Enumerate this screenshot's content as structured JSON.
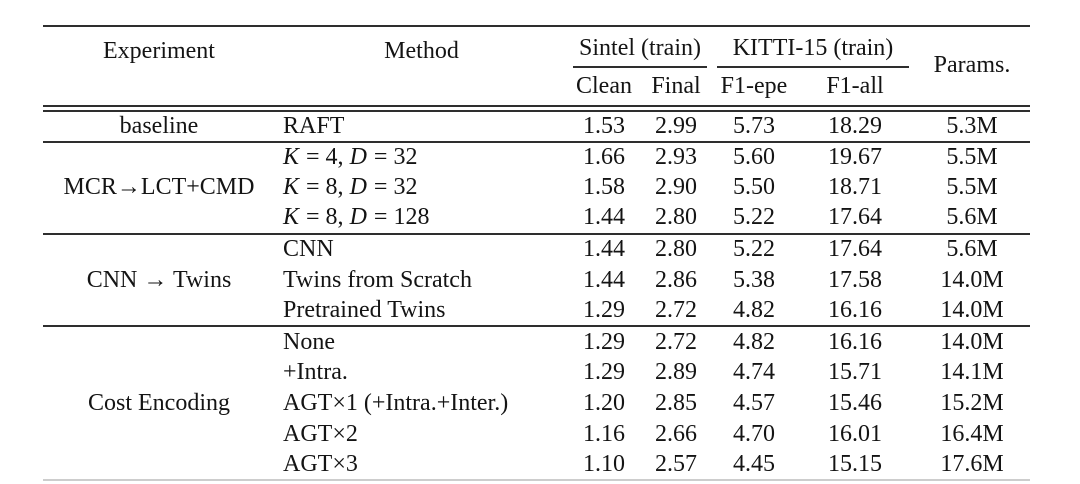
{
  "table": {
    "headers": {
      "experiment": "Experiment",
      "method": "Method",
      "sintel_group": "Sintel (train)",
      "kitti_group": "KITTI-15 (train)",
      "params": "Params.",
      "clean": "Clean",
      "final": "Final",
      "f1_epe": "F1-epe",
      "f1_all": "F1-all"
    },
    "groups": [
      {
        "experiment": "baseline",
        "rows": [
          {
            "method": "RAFT",
            "clean": "1.53",
            "final": "2.99",
            "f1_epe": "5.73",
            "f1_all": "18.29",
            "params": "5.3M"
          }
        ]
      },
      {
        "experiment": "MCR→LCT+CMD",
        "rows": [
          {
            "method": "K = 4, D = 32",
            "math_vars": true,
            "clean": "1.66",
            "final": "2.93",
            "f1_epe": "5.60",
            "f1_all": "19.67",
            "params": "5.5M"
          },
          {
            "method": "K = 8, D = 32",
            "math_vars": true,
            "clean": "1.58",
            "final": "2.90",
            "f1_epe": "5.50",
            "f1_all": "18.71",
            "params": "5.5M"
          },
          {
            "method": "K = 8, D = 128",
            "math_vars": true,
            "clean": "1.44",
            "final": "2.80",
            "f1_epe": "5.22",
            "f1_all": "17.64",
            "params": "5.6M"
          }
        ]
      },
      {
        "experiment": "CNN → Twins",
        "rows": [
          {
            "method": "CNN",
            "clean": "1.44",
            "final": "2.80",
            "f1_epe": "5.22",
            "f1_all": "17.64",
            "params": "5.6M"
          },
          {
            "method": "Twins from Scratch",
            "clean": "1.44",
            "final": "2.86",
            "f1_epe": "5.38",
            "f1_all": "17.58",
            "params": "14.0M"
          },
          {
            "method": "Pretrained Twins",
            "clean": "1.29",
            "final": "2.72",
            "f1_epe": "4.82",
            "f1_all": "16.16",
            "params": "14.0M"
          }
        ]
      },
      {
        "experiment": "Cost Encoding",
        "rows": [
          {
            "method": "None",
            "clean": "1.29",
            "final": "2.72",
            "f1_epe": "4.82",
            "f1_all": "16.16",
            "params": "14.0M"
          },
          {
            "method": "+Intra.",
            "clean": "1.29",
            "final": "2.89",
            "f1_epe": "4.74",
            "f1_all": "15.71",
            "params": "14.1M"
          },
          {
            "method": "AGT×1 (+Intra.+Inter.)",
            "clean": "1.20",
            "final": "2.85",
            "f1_epe": "4.57",
            "f1_all": "15.46",
            "params": "15.2M"
          },
          {
            "method": "AGT×2",
            "clean": "1.16",
            "final": "2.66",
            "f1_epe": "4.70",
            "f1_all": "16.01",
            "params": "16.4M"
          },
          {
            "method": "AGT×3",
            "clean": "1.10",
            "final": "2.57",
            "f1_epe": "4.45",
            "f1_all": "15.15",
            "params": "17.6M"
          }
        ]
      }
    ],
    "colors": {
      "rule_dark": "#2e2e2e",
      "rule_light": "#cdcdcd",
      "text": "#141414",
      "background": "#ffffff"
    }
  }
}
